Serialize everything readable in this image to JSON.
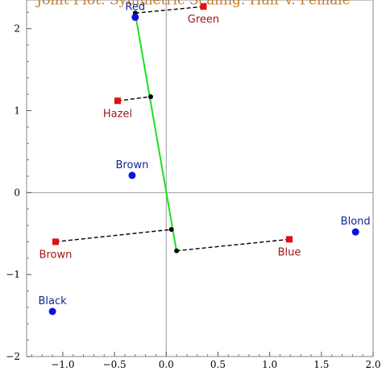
{
  "chart_data": {
    "type": "scatter",
    "title": "Joint Plot: Symmetric Scaling. Hair v. Female",
    "xlabel": "",
    "ylabel": "",
    "xlim": [
      -1.35,
      2.0
    ],
    "ylim": [
      -2.0,
      2.35
    ],
    "x_ticks": [
      -1.0,
      -0.5,
      0.0,
      0.5,
      1.0,
      1.5,
      2.0
    ],
    "x_tick_labels": [
      "−1.0",
      "−0.5",
      "0.0",
      "0.5",
      "1.0",
      "1.5",
      "2.0"
    ],
    "y_ticks": [
      -2,
      -1,
      0,
      1,
      2
    ],
    "y_tick_labels": [
      "−2",
      "−1",
      "0",
      "1",
      "2"
    ],
    "grid": false,
    "zero_lines": true,
    "series": [
      {
        "marker": "circle",
        "color": "#1010e0",
        "label_color": "#102890",
        "points": [
          {
            "label": "Red",
            "x": -0.3,
            "y": 2.14
          },
          {
            "label": "Brown",
            "x": -0.33,
            "y": 0.21
          },
          {
            "label": "Blond",
            "x": 1.83,
            "y": -0.48
          },
          {
            "label": "Black",
            "x": -1.1,
            "y": -1.45
          }
        ]
      },
      {
        "marker": "square",
        "color": "#e01010",
        "label_color": "#a01818",
        "points": [
          {
            "label": "Green",
            "x": 0.36,
            "y": 2.27
          },
          {
            "label": "Hazel",
            "x": -0.47,
            "y": 1.12
          },
          {
            "label": "Brown",
            "x": -1.07,
            "y": -0.6
          },
          {
            "label": "Blue",
            "x": 1.19,
            "y": -0.57
          }
        ]
      }
    ],
    "axis_line": {
      "color": "#20dd20",
      "from": [
        -0.3,
        2.19
      ],
      "to": [
        0.1,
        -0.72
      ]
    },
    "projections": [
      {
        "from": [
          0.36,
          2.27
        ],
        "to": [
          -0.3,
          2.19
        ]
      },
      {
        "from": [
          -0.47,
          1.12
        ],
        "to": [
          -0.15,
          1.17
        ]
      },
      {
        "from": [
          -1.07,
          -0.6
        ],
        "to": [
          0.05,
          -0.45
        ]
      },
      {
        "from": [
          1.19,
          -0.57
        ],
        "to": [
          0.1,
          -0.71
        ]
      }
    ]
  }
}
